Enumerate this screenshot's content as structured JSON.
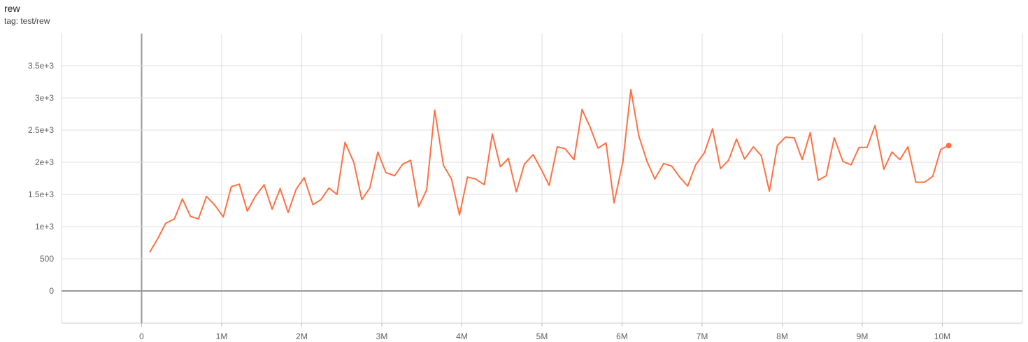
{
  "header": {
    "title": "rew",
    "tag": "tag: test/rew"
  },
  "chart_data": {
    "type": "line",
    "title": "rew",
    "xlabel": "",
    "ylabel": "",
    "xlim": [
      -1,
      11
    ],
    "ylim": [
      -500,
      4000
    ],
    "grid": true,
    "x_unit": "M",
    "xticks": [
      0,
      1,
      2,
      3,
      4,
      5,
      6,
      7,
      8,
      9,
      10
    ],
    "xtick_labels": [
      "0",
      "1M",
      "2M",
      "3M",
      "4M",
      "5M",
      "6M",
      "7M",
      "8M",
      "9M",
      "10M"
    ],
    "yticks": [
      0,
      500,
      1000,
      1500,
      2000,
      2500,
      3000,
      3500
    ],
    "ytick_labels": [
      "0",
      "500",
      "1e+3",
      "1.5e+3",
      "2e+3",
      "2.5e+3",
      "3e+3",
      "3.5e+3"
    ],
    "series": [
      {
        "color": "#ff7043",
        "x": [
          0.1,
          0.2,
          0.3,
          0.41,
          0.51,
          0.61,
          0.71,
          0.81,
          0.91,
          1.02,
          1.12,
          1.22,
          1.32,
          1.42,
          1.53,
          1.63,
          1.73,
          1.83,
          1.93,
          2.03,
          2.14,
          2.24,
          2.34,
          2.44,
          2.54,
          2.65,
          2.75,
          2.85,
          2.95,
          3.05,
          3.16,
          3.26,
          3.36,
          3.46,
          3.56,
          3.66,
          3.77,
          3.87,
          3.97,
          4.07,
          4.17,
          4.28,
          4.38,
          4.48,
          4.58,
          4.68,
          4.78,
          4.89,
          4.99,
          5.09,
          5.19,
          5.29,
          5.4,
          5.5,
          5.6,
          5.7,
          5.8,
          5.9,
          6.01,
          6.11,
          6.21,
          6.31,
          6.41,
          6.52,
          6.62,
          6.72,
          6.82,
          6.92,
          7.03,
          7.13,
          7.23,
          7.33,
          7.43,
          7.53,
          7.64,
          7.74,
          7.84,
          7.94,
          8.04,
          8.15,
          8.25,
          8.35,
          8.45,
          8.55,
          8.65,
          8.76,
          8.86,
          8.96,
          9.06,
          9.16,
          9.27,
          9.37,
          9.47,
          9.57,
          9.67,
          9.78,
          9.88,
          9.98,
          10.08
        ],
        "y": [
          600,
          810,
          1050,
          1120,
          1430,
          1160,
          1120,
          1470,
          1340,
          1150,
          1620,
          1660,
          1240,
          1470,
          1650,
          1270,
          1590,
          1220,
          1580,
          1760,
          1340,
          1420,
          1600,
          1500,
          2310,
          2000,
          1420,
          1600,
          2160,
          1840,
          1790,
          1970,
          2030,
          1310,
          1570,
          2810,
          1950,
          1740,
          1180,
          1770,
          1740,
          1650,
          2440,
          1930,
          2060,
          1540,
          1970,
          2120,
          1890,
          1640,
          2240,
          2210,
          2040,
          2820,
          2550,
          2220,
          2300,
          1370,
          2000,
          3130,
          2410,
          2020,
          1740,
          1980,
          1940,
          1770,
          1630,
          1960,
          2150,
          2520,
          1900,
          2030,
          2360,
          2050,
          2240,
          2100,
          1550,
          2260,
          2390,
          2380,
          2040,
          2460,
          1720,
          1790,
          2380,
          2010,
          1960,
          2230,
          2230,
          2570,
          1890,
          2160,
          2040,
          2240,
          1690,
          1690,
          1780,
          2200,
          2260
        ]
      }
    ]
  }
}
